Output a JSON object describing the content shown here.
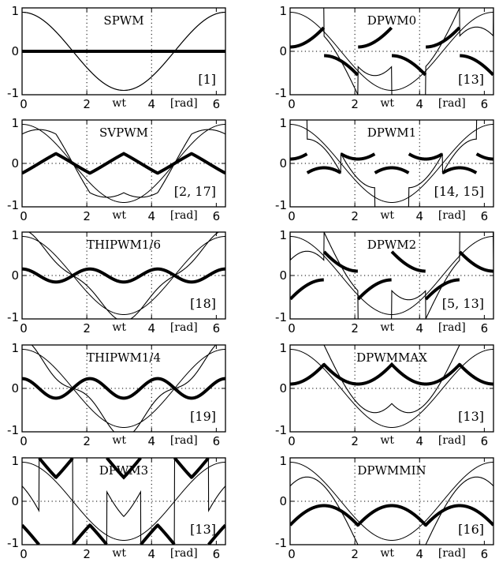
{
  "figure": {
    "xlabel": "wt",
    "xunit": "[rad]",
    "xticks": [
      "0",
      "2",
      "4",
      "6"
    ],
    "yticks": [
      "1",
      "0",
      "-1"
    ]
  },
  "chart_data": [
    {
      "type": "line",
      "title": "SPWM",
      "ref": "[1]",
      "method": "spwm",
      "xlim": [
        0,
        6.2832
      ],
      "ylim": [
        -1,
        1
      ],
      "grid": "dotted",
      "series": [
        {
          "role": "reference",
          "amplitude": 0.9
        },
        {
          "role": "modulation"
        },
        {
          "role": "zero-sequence"
        }
      ]
    },
    {
      "type": "line",
      "title": "DPWM0",
      "ref": "[13]",
      "method": "dpwm0",
      "xlim": [
        0,
        6.2832
      ],
      "ylim": [
        -1,
        1
      ],
      "grid": "dotted",
      "series": [
        {
          "role": "reference",
          "amplitude": 0.9
        },
        {
          "role": "modulation"
        },
        {
          "role": "zero-sequence"
        }
      ]
    },
    {
      "type": "line",
      "title": "SVPWM",
      "ref": "[2, 17]",
      "method": "svpwm",
      "xlim": [
        0,
        6.2832
      ],
      "ylim": [
        -1,
        1
      ],
      "grid": "dotted",
      "series": [
        {
          "role": "reference",
          "amplitude": 0.9
        },
        {
          "role": "modulation"
        },
        {
          "role": "zero-sequence"
        }
      ]
    },
    {
      "type": "line",
      "title": "DPWM1",
      "ref": "[14, 15]",
      "method": "dpwm1",
      "xlim": [
        0,
        6.2832
      ],
      "ylim": [
        -1,
        1
      ],
      "grid": "dotted",
      "series": [
        {
          "role": "reference",
          "amplitude": 0.9
        },
        {
          "role": "modulation"
        },
        {
          "role": "zero-sequence"
        }
      ]
    },
    {
      "type": "line",
      "title": "THIPWM1/6",
      "ref": "[18]",
      "method": "thipwm6",
      "xlim": [
        0,
        6.2832
      ],
      "ylim": [
        -1,
        1
      ],
      "grid": "dotted",
      "series": [
        {
          "role": "reference",
          "amplitude": 0.9
        },
        {
          "role": "modulation"
        },
        {
          "role": "zero-sequence"
        }
      ]
    },
    {
      "type": "line",
      "title": "DPWM2",
      "ref": "[5, 13]",
      "method": "dpwm2",
      "xlim": [
        0,
        6.2832
      ],
      "ylim": [
        -1,
        1
      ],
      "grid": "dotted",
      "series": [
        {
          "role": "reference",
          "amplitude": 0.9
        },
        {
          "role": "modulation"
        },
        {
          "role": "zero-sequence"
        }
      ]
    },
    {
      "type": "line",
      "title": "THIPWM1/4",
      "ref": "[19]",
      "method": "thipwm4",
      "xlim": [
        0,
        6.2832
      ],
      "ylim": [
        -1,
        1
      ],
      "grid": "dotted",
      "series": [
        {
          "role": "reference",
          "amplitude": 0.9
        },
        {
          "role": "modulation"
        },
        {
          "role": "zero-sequence"
        }
      ]
    },
    {
      "type": "line",
      "title": "DPWMMAX",
      "ref": "[13]",
      "method": "dpwmmax",
      "xlim": [
        0,
        6.2832
      ],
      "ylim": [
        -1,
        1
      ],
      "grid": "dotted",
      "series": [
        {
          "role": "reference",
          "amplitude": 0.9
        },
        {
          "role": "modulation"
        },
        {
          "role": "zero-sequence"
        }
      ]
    },
    {
      "type": "line",
      "title": "DPWM3",
      "ref": "[13]",
      "method": "dpwm3",
      "xlim": [
        0,
        6.2832
      ],
      "ylim": [
        -1,
        1
      ],
      "grid": "dotted",
      "series": [
        {
          "role": "reference",
          "amplitude": 0.9
        },
        {
          "role": "modulation"
        },
        {
          "role": "zero-sequence"
        }
      ]
    },
    {
      "type": "line",
      "title": "DPWMMIN",
      "ref": "[16]",
      "method": "dpwmmin",
      "xlim": [
        0,
        6.2832
      ],
      "ylim": [
        -1,
        1
      ],
      "grid": "dotted",
      "series": [
        {
          "role": "reference",
          "amplitude": 0.9
        },
        {
          "role": "modulation"
        },
        {
          "role": "zero-sequence"
        }
      ]
    }
  ]
}
